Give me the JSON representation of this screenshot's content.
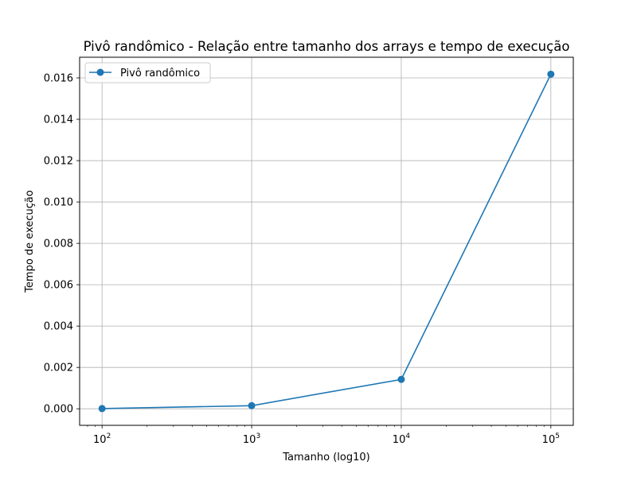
{
  "chart_data": {
    "type": "line",
    "title": "Pivô randômico - Relação entre tamanho dos arrays e tempo de execução",
    "xlabel": "Tamanho (log10)",
    "ylabel": "Tempo de execução",
    "x_scale": "log",
    "x": [
      100,
      1000,
      10000,
      100000
    ],
    "x_tick_labels": [
      {
        "base": "10",
        "exp": "2"
      },
      {
        "base": "10",
        "exp": "3"
      },
      {
        "base": "10",
        "exp": "4"
      },
      {
        "base": "10",
        "exp": "5"
      }
    ],
    "y_ticks": [
      "0.000",
      "0.002",
      "0.004",
      "0.006",
      "0.008",
      "0.010",
      "0.012",
      "0.014",
      "0.016"
    ],
    "ylim": [
      -0.0008,
      0.017
    ],
    "grid": true,
    "legend_position": "top-left",
    "series": [
      {
        "name": "Pivô randômico",
        "color": "#1f77b4",
        "marker": "circle",
        "values": [
          1e-05,
          0.00015,
          0.00142,
          0.01618
        ]
      }
    ]
  }
}
